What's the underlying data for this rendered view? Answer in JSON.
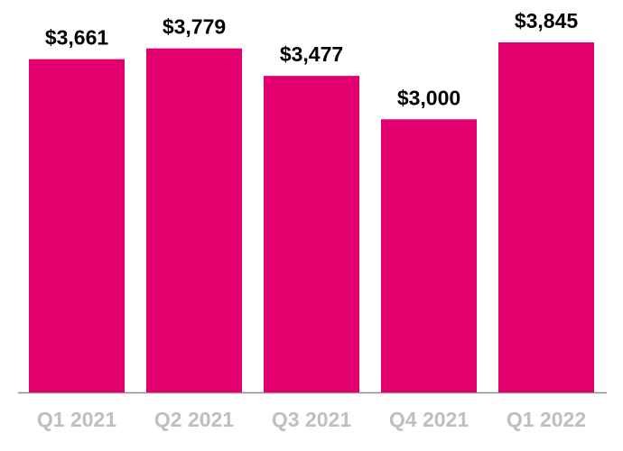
{
  "chart_data": {
    "type": "bar",
    "categories": [
      "Q1 2021",
      "Q2 2021",
      "Q3 2021",
      "Q4 2021",
      "Q1 2022"
    ],
    "values": [
      3661,
      3779,
      3477,
      3000,
      3845
    ],
    "value_labels": [
      "$3,661",
      "$3,779",
      "$3,477",
      "$3,000",
      "$3,845"
    ],
    "color": "#e2006e"
  }
}
